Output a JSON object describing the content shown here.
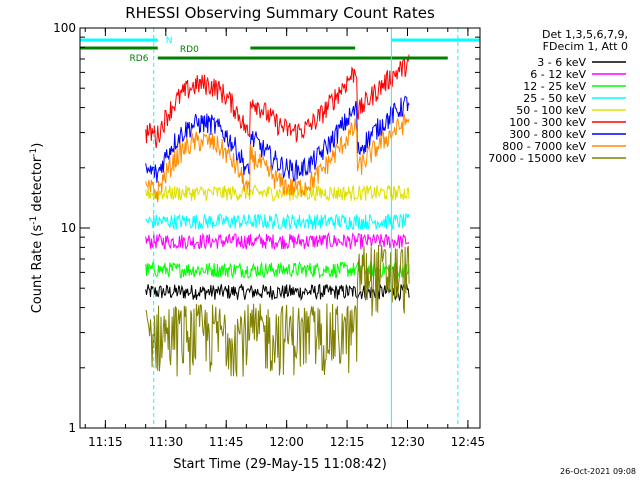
{
  "chart_data": {
    "type": "line",
    "title": "RHESSI Observing Summary Count Rates",
    "xlabel": "Start Time (29-May-15 11:08:42)",
    "ylabel": "Count Rate (s",
    "ylabel_sup": "-1",
    "ylabel_tail": " detector",
    "ylabel_sup2": "-1",
    "ylabel_close": ")",
    "y_scale": "log",
    "ylim": [
      1,
      100
    ],
    "xlim": [
      "11:08:42",
      "12:48:00"
    ],
    "y_ticks": [
      "1",
      "10",
      "100"
    ],
    "x_ticks": [
      "11:15",
      "11:30",
      "11:45",
      "12:00",
      "12:15",
      "12:30",
      "12:45"
    ],
    "footer": "26-Oct-2021 09:08",
    "legend": {
      "position": "top-right",
      "header1": "Det 1,3,5,6,7,9,",
      "header2": "FDecim 1, Att 0"
    },
    "flags": [
      {
        "name": "N",
        "color": "#00ffff"
      },
      {
        "name": "RD0",
        "color": "#008000"
      },
      {
        "name": "RD6",
        "color": "#008000"
      }
    ],
    "series": [
      {
        "name": "3 - 6 keV",
        "color": "#000000",
        "base": 4.8
      },
      {
        "name": "6 - 12 keV",
        "color": "#ff00ff",
        "base": 8.6
      },
      {
        "name": "12 - 25 keV",
        "color": "#00ff00",
        "base": 6.2
      },
      {
        "name": "25 - 50 keV",
        "color": "#00ffff",
        "base": 10.8
      },
      {
        "name": "50 - 100 keV",
        "color": "#e0e000",
        "base": 15
      },
      {
        "name": "100 - 300 keV",
        "color": "#ff0000",
        "base": 50
      },
      {
        "name": "300 - 800 keV",
        "color": "#0000ff",
        "base": 32
      },
      {
        "name": "800 - 7000 keV",
        "color": "#ff8c00",
        "base": 26
      },
      {
        "name": "7000 - 15000 keV",
        "color": "#808000",
        "base": 3
      }
    ]
  }
}
